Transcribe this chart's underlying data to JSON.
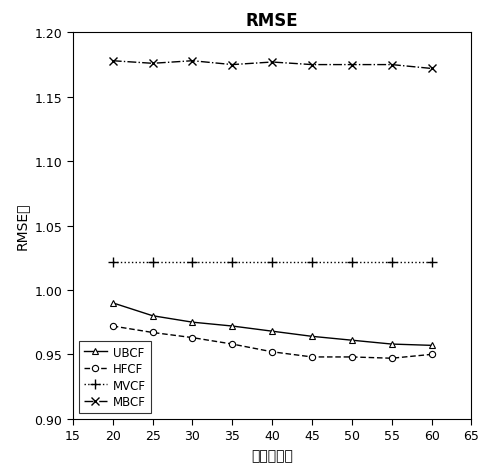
{
  "title": "RMSE",
  "xlabel": "邻近用户数",
  "ylabel": "RMSE値",
  "x": [
    20,
    25,
    30,
    35,
    40,
    45,
    50,
    55,
    60
  ],
  "UBCF": [
    0.99,
    0.98,
    0.975,
    0.972,
    0.968,
    0.964,
    0.961,
    0.958,
    0.957
  ],
  "HFCF": [
    0.972,
    0.967,
    0.963,
    0.958,
    0.952,
    0.948,
    0.948,
    0.947,
    0.95
  ],
  "MVCF": [
    1.022,
    1.022,
    1.022,
    1.022,
    1.022,
    1.022,
    1.022,
    1.022,
    1.022
  ],
  "MBCF": [
    1.178,
    1.176,
    1.178,
    1.175,
    1.177,
    1.175,
    1.175,
    1.175,
    1.172
  ],
  "xlim": [
    15,
    65
  ],
  "ylim": [
    0.9,
    1.2
  ],
  "yticks": [
    0.9,
    0.95,
    1.0,
    1.05,
    1.1,
    1.15,
    1.2
  ],
  "xticks": [
    15,
    20,
    25,
    30,
    35,
    40,
    45,
    50,
    55,
    60,
    65
  ],
  "background_color": "#ffffff",
  "line_color": "#000000"
}
